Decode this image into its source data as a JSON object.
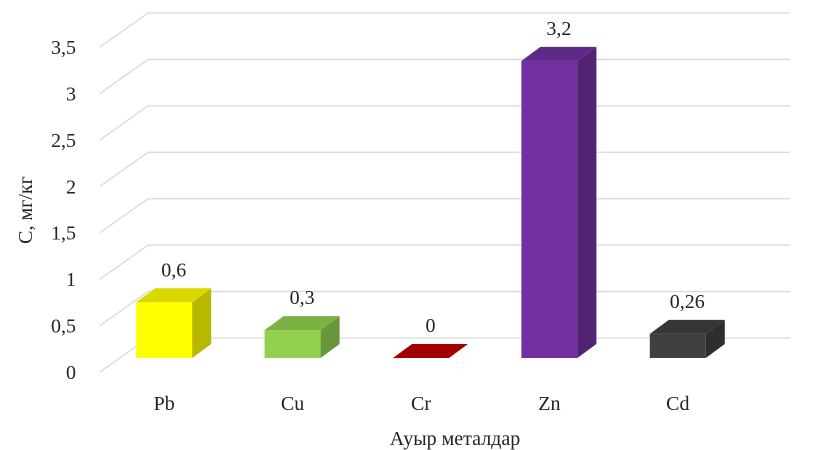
{
  "chart_data": {
    "type": "bar",
    "categories": [
      "Pb",
      "Cu",
      "Cr",
      "Zn",
      "Cd"
    ],
    "values": [
      0.6,
      0.3,
      0,
      3.2,
      0.26
    ],
    "value_labels": [
      "0,6",
      "0,3",
      "0",
      "3,2",
      "0,26"
    ],
    "colors": [
      "#ffff00",
      "#92d050",
      "#c00000",
      "#7030a0",
      "#404040"
    ],
    "title": "",
    "xlabel": "Ауыр металдар",
    "ylabel": "С, мг/кг",
    "ylim": [
      0,
      3.5
    ],
    "yticks": [
      0,
      0.5,
      1,
      1.5,
      2,
      2.5,
      3,
      3.5
    ],
    "ytick_labels": [
      "0",
      "0,5",
      "1",
      "1,5",
      "2",
      "2,5",
      "3",
      "3,5"
    ],
    "grid": true,
    "legend": "none",
    "style": "3d-column"
  }
}
